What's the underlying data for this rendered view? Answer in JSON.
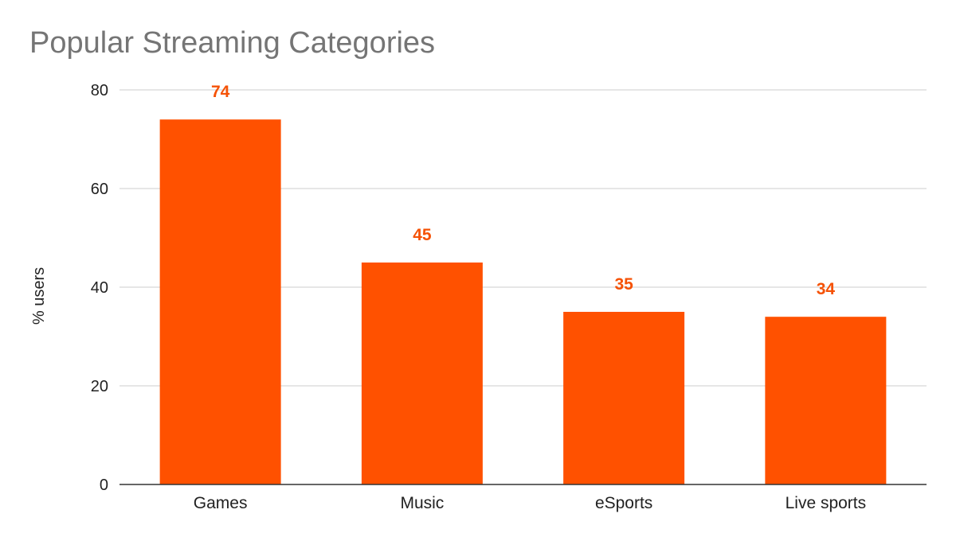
{
  "chart_data": {
    "type": "bar",
    "title": "Popular Streaming Categories",
    "xlabel": "",
    "ylabel": "% users",
    "categories": [
      "Games",
      "Music",
      "eSports",
      "Live sports"
    ],
    "values": [
      74,
      45,
      35,
      34
    ],
    "ylim": [
      0,
      80
    ],
    "yticks": [
      0,
      20,
      40,
      60,
      80
    ],
    "data_labels": [
      "74",
      "45",
      "35",
      "34"
    ],
    "grid": true,
    "legend": "none",
    "bar_color": "#FF5100",
    "label_color": "#F55206"
  }
}
